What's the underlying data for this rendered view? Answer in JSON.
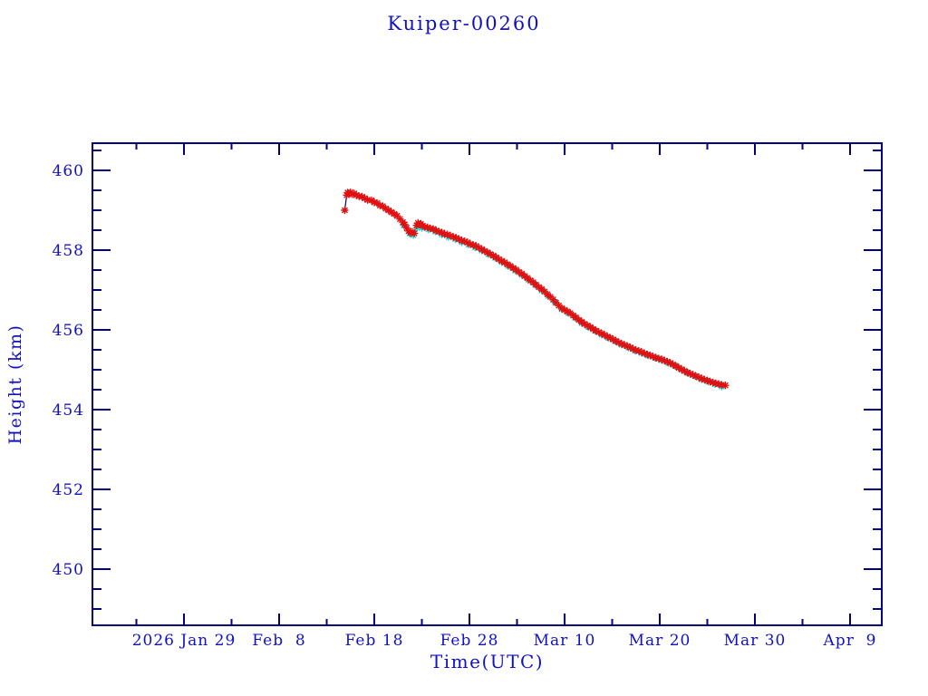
{
  "colors": {
    "background": "#ffffff",
    "text_blue": "#1111c4",
    "frame_navy": "#000080",
    "line_navy": "#00008b",
    "marker_red": "#e01010",
    "marker_cyan": "#00dede"
  },
  "chart_data": {
    "type": "scatter",
    "title": "Kuiper-00260",
    "xlabel": "Time(UTC)",
    "ylabel": "Height (km)",
    "x_unit": "days since 2026 Jan 29 00:00 UTC",
    "xlim": [
      -9.6,
      73.3
    ],
    "ylim": [
      448.6,
      460.7
    ],
    "grid": false,
    "legend": "none",
    "x_major_ticks": [
      {
        "d": 0,
        "label": "2026 Jan 29"
      },
      {
        "d": 10,
        "label": "Feb  8"
      },
      {
        "d": 20,
        "label": "Feb 18"
      },
      {
        "d": 30,
        "label": "Feb 28"
      },
      {
        "d": 40,
        "label": "Mar 10"
      },
      {
        "d": 50,
        "label": "Mar 20"
      },
      {
        "d": 60,
        "label": "Mar 30"
      },
      {
        "d": 70,
        "label": "Apr  9"
      }
    ],
    "x_minor_ticks": [
      -5,
      5,
      15,
      25,
      35,
      45,
      55,
      65
    ],
    "y_major_ticks": [
      {
        "v": 460,
        "label": "460"
      },
      {
        "v": 458,
        "label": "458"
      },
      {
        "v": 456,
        "label": "456"
      },
      {
        "v": 454,
        "label": "454"
      },
      {
        "v": 452,
        "label": "452"
      },
      {
        "v": 450,
        "label": "450"
      }
    ],
    "y_minor_ticks": [
      449.0,
      449.5,
      450.5,
      451.0,
      451.5,
      452.5,
      453.0,
      453.5,
      454.5,
      455.0,
      455.5,
      456.5,
      457.0,
      457.5,
      458.5,
      459.0,
      459.5,
      460.5
    ],
    "series": [
      {
        "name": "height-observed-red",
        "marker": "asterisk",
        "color": "#e01010",
        "connect_line": true,
        "line_color": "#00008b",
        "points": [
          [
            16.9,
            459.0
          ],
          [
            17.1,
            459.38
          ],
          [
            17.2,
            459.44
          ],
          [
            17.35,
            459.42
          ],
          [
            17.5,
            459.45
          ],
          [
            17.7,
            459.4
          ],
          [
            17.9,
            459.42
          ],
          [
            18.1,
            459.38
          ],
          [
            18.4,
            459.35
          ],
          [
            18.7,
            459.34
          ],
          [
            19.0,
            459.3
          ],
          [
            19.3,
            459.26
          ],
          [
            19.7,
            459.25
          ],
          [
            20.0,
            459.2
          ],
          [
            20.3,
            459.18
          ],
          [
            20.6,
            459.12
          ],
          [
            20.9,
            459.1
          ],
          [
            21.2,
            459.04
          ],
          [
            21.5,
            459.0
          ],
          [
            21.8,
            458.95
          ],
          [
            22.1,
            458.91
          ],
          [
            22.4,
            458.86
          ],
          [
            22.7,
            458.78
          ],
          [
            23.0,
            458.7
          ],
          [
            23.2,
            458.64
          ],
          [
            23.4,
            458.56
          ],
          [
            23.6,
            458.48
          ],
          [
            23.8,
            458.43
          ],
          [
            24.0,
            458.46
          ],
          [
            24.2,
            458.42
          ],
          [
            24.45,
            458.62
          ],
          [
            24.6,
            458.68
          ],
          [
            24.75,
            458.64
          ],
          [
            24.9,
            458.66
          ],
          [
            25.1,
            458.61
          ],
          [
            25.3,
            458.58
          ],
          [
            25.6,
            458.57
          ],
          [
            25.9,
            458.54
          ],
          [
            26.2,
            458.53
          ],
          [
            26.5,
            458.49
          ],
          [
            26.8,
            458.46
          ],
          [
            27.1,
            458.44
          ],
          [
            27.4,
            458.4
          ],
          [
            27.7,
            458.39
          ],
          [
            28.0,
            458.36
          ],
          [
            28.3,
            458.33
          ],
          [
            28.6,
            458.31
          ],
          [
            28.9,
            458.27
          ],
          [
            29.2,
            458.24
          ],
          [
            29.5,
            458.22
          ],
          [
            29.8,
            458.19
          ],
          [
            30.1,
            458.15
          ],
          [
            30.4,
            458.13
          ],
          [
            30.7,
            458.1
          ],
          [
            31.0,
            458.06
          ],
          [
            31.3,
            458.02
          ],
          [
            31.6,
            457.98
          ],
          [
            31.9,
            457.94
          ],
          [
            32.2,
            457.9
          ],
          [
            32.5,
            457.86
          ],
          [
            32.8,
            457.82
          ],
          [
            33.1,
            457.77
          ],
          [
            33.4,
            457.73
          ],
          [
            33.7,
            457.69
          ],
          [
            34.0,
            457.64
          ],
          [
            34.3,
            457.6
          ],
          [
            34.6,
            457.55
          ],
          [
            34.9,
            457.51
          ],
          [
            35.2,
            457.45
          ],
          [
            35.5,
            457.41
          ],
          [
            35.8,
            457.35
          ],
          [
            36.1,
            457.3
          ],
          [
            36.4,
            457.24
          ],
          [
            36.7,
            457.19
          ],
          [
            37.0,
            457.13
          ],
          [
            37.3,
            457.07
          ],
          [
            37.6,
            457.02
          ],
          [
            37.9,
            456.96
          ],
          [
            38.2,
            456.89
          ],
          [
            38.5,
            456.83
          ],
          [
            38.8,
            456.76
          ],
          [
            39.1,
            456.68
          ],
          [
            39.4,
            456.61
          ],
          [
            39.7,
            456.54
          ],
          [
            40.0,
            456.5
          ],
          [
            40.3,
            456.46
          ],
          [
            40.6,
            456.42
          ],
          [
            40.9,
            456.36
          ],
          [
            41.2,
            456.31
          ],
          [
            41.5,
            456.25
          ],
          [
            41.8,
            456.2
          ],
          [
            42.1,
            456.15
          ],
          [
            42.4,
            456.11
          ],
          [
            42.7,
            456.07
          ],
          [
            43.0,
            456.02
          ],
          [
            43.3,
            455.98
          ],
          [
            43.6,
            455.94
          ],
          [
            43.9,
            455.91
          ],
          [
            44.2,
            455.87
          ],
          [
            44.5,
            455.83
          ],
          [
            44.8,
            455.8
          ],
          [
            45.1,
            455.76
          ],
          [
            45.4,
            455.72
          ],
          [
            45.7,
            455.68
          ],
          [
            46.0,
            455.65
          ],
          [
            46.3,
            455.62
          ],
          [
            46.6,
            455.59
          ],
          [
            46.9,
            455.56
          ],
          [
            47.2,
            455.52
          ],
          [
            47.5,
            455.49
          ],
          [
            47.8,
            455.47
          ],
          [
            48.1,
            455.44
          ],
          [
            48.4,
            455.41
          ],
          [
            48.7,
            455.38
          ],
          [
            49.0,
            455.36
          ],
          [
            49.3,
            455.33
          ],
          [
            49.6,
            455.3
          ],
          [
            49.9,
            455.28
          ],
          [
            50.2,
            455.26
          ],
          [
            50.5,
            455.23
          ],
          [
            50.8,
            455.2
          ],
          [
            51.1,
            455.17
          ],
          [
            51.4,
            455.13
          ],
          [
            51.7,
            455.09
          ],
          [
            52.0,
            455.05
          ],
          [
            52.3,
            455.01
          ],
          [
            52.6,
            454.97
          ],
          [
            52.9,
            454.93
          ],
          [
            53.2,
            454.9
          ],
          [
            53.5,
            454.87
          ],
          [
            53.8,
            454.84
          ],
          [
            54.1,
            454.81
          ],
          [
            54.4,
            454.78
          ],
          [
            54.7,
            454.75
          ],
          [
            55.0,
            454.73
          ],
          [
            55.3,
            454.7
          ],
          [
            55.6,
            454.68
          ],
          [
            55.9,
            454.66
          ],
          [
            56.2,
            454.64
          ],
          [
            56.5,
            454.62
          ],
          [
            56.9,
            454.61
          ]
        ]
      },
      {
        "name": "height-reference-cyan",
        "marker": "asterisk",
        "color": "#00dede",
        "connect_line": false,
        "points": [
          [
            23.1,
            458.62
          ],
          [
            23.7,
            458.42
          ],
          [
            24.1,
            458.38
          ],
          [
            24.5,
            458.56
          ],
          [
            25.0,
            458.56
          ],
          [
            25.7,
            458.52
          ],
          [
            26.4,
            458.47
          ],
          [
            27.1,
            458.39
          ],
          [
            27.8,
            458.33
          ],
          [
            28.5,
            458.28
          ],
          [
            29.2,
            458.2
          ],
          [
            29.9,
            458.14
          ],
          [
            30.6,
            458.07
          ],
          [
            31.3,
            457.99
          ],
          [
            32.0,
            457.9
          ],
          [
            32.7,
            457.81
          ],
          [
            33.4,
            457.7
          ],
          [
            34.1,
            457.6
          ],
          [
            34.8,
            457.49
          ],
          [
            35.5,
            457.38
          ],
          [
            36.2,
            457.26
          ],
          [
            36.9,
            457.13
          ],
          [
            37.6,
            456.99
          ],
          [
            38.3,
            456.85
          ],
          [
            39.0,
            456.7
          ],
          [
            39.7,
            456.52
          ],
          [
            40.4,
            456.42
          ],
          [
            41.1,
            456.31
          ],
          [
            41.8,
            456.17
          ],
          [
            42.5,
            456.07
          ],
          [
            43.2,
            455.98
          ],
          [
            43.9,
            455.88
          ],
          [
            44.6,
            455.8
          ],
          [
            45.3,
            455.72
          ],
          [
            46.0,
            455.63
          ],
          [
            46.7,
            455.56
          ],
          [
            47.4,
            455.48
          ],
          [
            48.1,
            455.42
          ],
          [
            48.8,
            455.36
          ],
          [
            49.5,
            455.3
          ],
          [
            50.2,
            455.24
          ],
          [
            50.9,
            455.17
          ],
          [
            51.6,
            455.1
          ],
          [
            52.3,
            455.0
          ],
          [
            53.0,
            454.92
          ],
          [
            53.7,
            454.84
          ],
          [
            54.4,
            454.76
          ],
          [
            55.1,
            454.7
          ],
          [
            55.8,
            454.64
          ],
          [
            56.5,
            454.58
          ]
        ]
      }
    ]
  }
}
